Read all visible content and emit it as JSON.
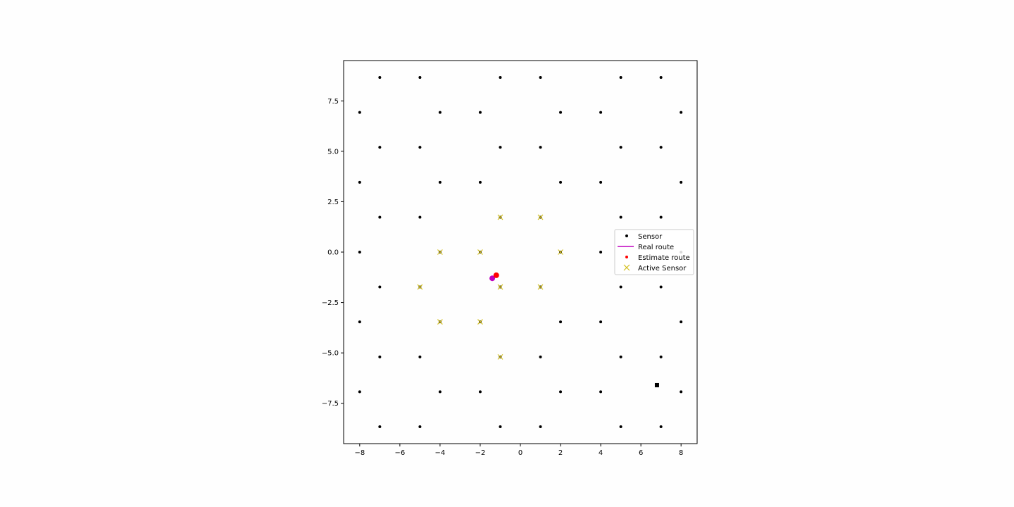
{
  "chart_data": {
    "type": "scatter",
    "title": "",
    "xlabel": "",
    "ylabel": "",
    "xlim": [
      -8.8,
      8.8
    ],
    "ylim": [
      -9.5,
      9.5
    ],
    "xticks": [
      -8,
      -6,
      -4,
      -2,
      0,
      2,
      4,
      6,
      8
    ],
    "xtick_labels": [
      "−8",
      "−6",
      "−4",
      "−2",
      "0",
      "2",
      "4",
      "6",
      "8"
    ],
    "yticks": [
      7.5,
      5.0,
      2.5,
      0.0,
      -2.5,
      -5.0,
      -7.5
    ],
    "ytick_labels": [
      "7.5",
      "5.0",
      "2.5",
      "0.0",
      "−2.5",
      "−5.0",
      "−7.5"
    ],
    "grid": false,
    "legend_position": "center-right",
    "colors": {
      "sensor": "#000000",
      "real_route": "#bf00bf",
      "estimate_route": "#ff0000",
      "active_sensor": "#d4c020"
    },
    "series": [
      {
        "name": "Sensor",
        "marker": "dot",
        "points": [
          [
            -7,
            8.66
          ],
          [
            -5,
            8.66
          ],
          [
            -1,
            8.66
          ],
          [
            1,
            8.66
          ],
          [
            5,
            8.66
          ],
          [
            7,
            8.66
          ],
          [
            -8,
            6.93
          ],
          [
            -4,
            6.93
          ],
          [
            -2,
            6.93
          ],
          [
            2,
            6.93
          ],
          [
            4,
            6.93
          ],
          [
            8,
            6.93
          ],
          [
            -7,
            5.2
          ],
          [
            -5,
            5.2
          ],
          [
            -1,
            5.2
          ],
          [
            1,
            5.2
          ],
          [
            5,
            5.2
          ],
          [
            7,
            5.2
          ],
          [
            -8,
            3.46
          ],
          [
            -4,
            3.46
          ],
          [
            -2,
            3.46
          ],
          [
            2,
            3.46
          ],
          [
            4,
            3.46
          ],
          [
            8,
            3.46
          ],
          [
            -7,
            1.73
          ],
          [
            -5,
            1.73
          ],
          [
            -1,
            1.73
          ],
          [
            1,
            1.73
          ],
          [
            5,
            1.73
          ],
          [
            7,
            1.73
          ],
          [
            -8,
            0
          ],
          [
            -4,
            0
          ],
          [
            -2,
            0
          ],
          [
            2,
            0
          ],
          [
            4,
            0
          ],
          [
            8,
            0
          ],
          [
            -7,
            -1.73
          ],
          [
            -5,
            -1.73
          ],
          [
            -1,
            -1.73
          ],
          [
            1,
            -1.73
          ],
          [
            5,
            -1.73
          ],
          [
            7,
            -1.73
          ],
          [
            -8,
            -3.46
          ],
          [
            -4,
            -3.46
          ],
          [
            -2,
            -3.46
          ],
          [
            2,
            -3.46
          ],
          [
            4,
            -3.46
          ],
          [
            8,
            -3.46
          ],
          [
            -7,
            -5.2
          ],
          [
            -5,
            -5.2
          ],
          [
            -1,
            -5.2
          ],
          [
            1,
            -5.2
          ],
          [
            5,
            -5.2
          ],
          [
            7,
            -5.2
          ],
          [
            -8,
            -6.93
          ],
          [
            -4,
            -6.93
          ],
          [
            -2,
            -6.93
          ],
          [
            2,
            -6.93
          ],
          [
            4,
            -6.93
          ],
          [
            8,
            -6.93
          ],
          [
            -7,
            -8.66
          ],
          [
            -5,
            -8.66
          ],
          [
            -1,
            -8.66
          ],
          [
            1,
            -8.66
          ],
          [
            5,
            -8.66
          ],
          [
            7,
            -8.66
          ]
        ]
      },
      {
        "name": "Real route",
        "marker": "line",
        "points": [
          [
            -1.4,
            -1.3
          ]
        ]
      },
      {
        "name": "Estimate route",
        "marker": "circle",
        "points": [
          [
            -1.2,
            -1.15
          ]
        ]
      },
      {
        "name": "Active Sensor",
        "marker": "x",
        "points": [
          [
            -1,
            1.73
          ],
          [
            1,
            1.73
          ],
          [
            -4,
            0
          ],
          [
            -2,
            0
          ],
          [
            2,
            0
          ],
          [
            -5,
            -1.73
          ],
          [
            -1,
            -1.73
          ],
          [
            1,
            -1.73
          ],
          [
            -4,
            -3.46
          ],
          [
            -2,
            -3.46
          ],
          [
            -1,
            -5.2
          ]
        ]
      }
    ],
    "extra_points": [
      {
        "marker": "square",
        "x": 6.8,
        "y": -6.6
      }
    ]
  }
}
